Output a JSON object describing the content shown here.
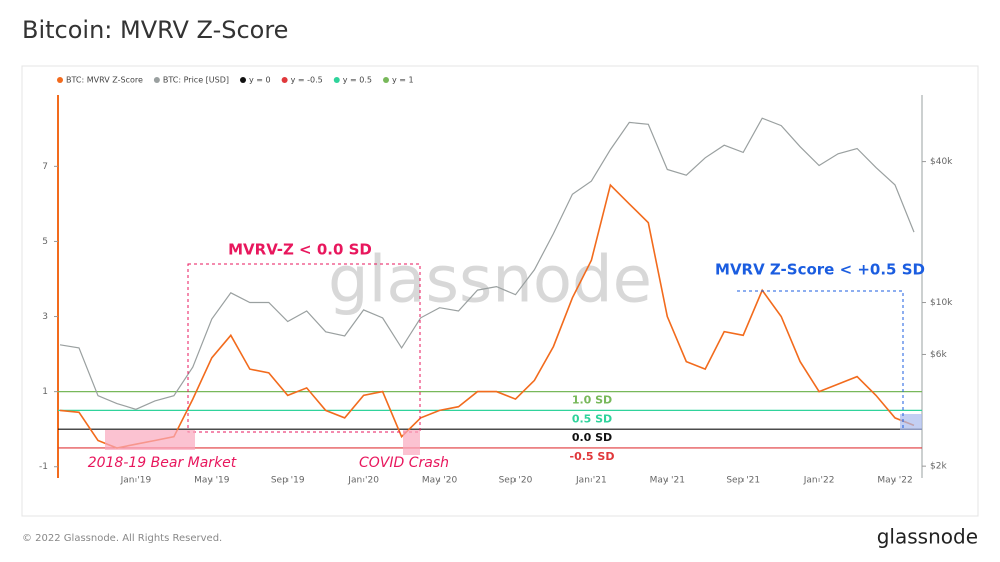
{
  "chart_data": {
    "type": "line",
    "title": "Bitcoin: MVRV Z-Score",
    "watermark": "glassnode",
    "x": [
      "2018-09",
      "2018-10",
      "2018-11",
      "2018-12",
      "2019-01",
      "2019-02",
      "2019-03",
      "2019-04",
      "2019-05",
      "2019-06",
      "2019-07",
      "2019-08",
      "2019-09",
      "2019-10",
      "2019-11",
      "2019-12",
      "2020-01",
      "2020-02",
      "2020-03",
      "2020-04",
      "2020-05",
      "2020-06",
      "2020-07",
      "2020-08",
      "2020-09",
      "2020-10",
      "2020-11",
      "2020-12",
      "2021-01",
      "2021-02",
      "2021-03",
      "2021-04",
      "2021-05",
      "2021-06",
      "2021-07",
      "2021-08",
      "2021-09",
      "2021-10",
      "2021-11",
      "2021-12",
      "2022-01",
      "2022-02",
      "2022-03",
      "2022-04",
      "2022-05",
      "2022-06"
    ],
    "xlim": [
      "2018-09",
      "2022-06"
    ],
    "xticks": [
      {
        "value": "2019-01",
        "label": "Jan '19"
      },
      {
        "value": "2019-05",
        "label": "May '19"
      },
      {
        "value": "2019-09",
        "label": "Sep '19"
      },
      {
        "value": "2020-01",
        "label": "Jan '20"
      },
      {
        "value": "2020-05",
        "label": "May '20"
      },
      {
        "value": "2020-09",
        "label": "Sep '20"
      },
      {
        "value": "2021-01",
        "label": "Jan '21"
      },
      {
        "value": "2021-05",
        "label": "May '21"
      },
      {
        "value": "2021-09",
        "label": "Sep '21"
      },
      {
        "value": "2022-01",
        "label": "Jan '22"
      },
      {
        "value": "2022-05",
        "label": "May '22"
      }
    ],
    "ylim": [
      -1.3,
      8.9
    ],
    "yticks": [
      -1,
      1,
      3,
      5,
      7
    ],
    "y2lim": [
      1780,
      77000
    ],
    "y2scale": "log",
    "y2ticks": [
      {
        "value": 2000,
        "label": "$2k"
      },
      {
        "value": 6000,
        "label": "$6k"
      },
      {
        "value": 10000,
        "label": "$10k"
      },
      {
        "value": 40000,
        "label": "$40k"
      }
    ],
    "series": [
      {
        "name": "BTC: MVRV Z-Score",
        "color": "#f26b1d",
        "axis": "y",
        "values": [
          0.5,
          0.45,
          -0.3,
          -0.5,
          -0.4,
          -0.3,
          -0.2,
          0.8,
          1.9,
          2.5,
          1.6,
          1.5,
          0.9,
          1.1,
          0.5,
          0.3,
          0.9,
          1.0,
          -0.2,
          0.3,
          0.5,
          0.6,
          1.0,
          1.0,
          0.8,
          1.3,
          2.2,
          3.5,
          4.5,
          6.5,
          6.0,
          5.5,
          3.0,
          1.8,
          1.6,
          2.6,
          2.5,
          3.7,
          3.0,
          1.8,
          1.0,
          1.2,
          1.4,
          0.9,
          0.3,
          0.1
        ]
      },
      {
        "name": "BTC: Price [USD]",
        "color": "#9aa0a0",
        "axis": "y2",
        "values": [
          6600,
          6400,
          4000,
          3700,
          3500,
          3800,
          4000,
          5300,
          8500,
          11000,
          10000,
          10000,
          8300,
          9200,
          7500,
          7200,
          9300,
          8600,
          6400,
          8600,
          9500,
          9200,
          11300,
          11700,
          10800,
          13800,
          19700,
          29000,
          33000,
          45000,
          58800,
          57700,
          37000,
          35000,
          41500,
          47000,
          43800,
          61300,
          57000,
          46300,
          38500,
          43200,
          45500,
          37700,
          31800,
          20000
        ]
      }
    ],
    "reference_lines": [
      {
        "name": "y = 0",
        "value": 0,
        "color": "#111111",
        "label": "0.0 SD"
      },
      {
        "name": "y = -0.5",
        "value": -0.5,
        "color": "#e0383b",
        "label": "-0.5 SD"
      },
      {
        "name": "y = 0.5",
        "value": 0.5,
        "color": "#2fd39b",
        "label": "0.5 SD"
      },
      {
        "name": "y = 1",
        "value": 1,
        "color": "#78b85a",
        "label": "1.0 SD"
      }
    ],
    "annotations": [
      "MVRV-Z < 0.0 SD",
      "MVRV Z-Score < +0.5 SD",
      "2018-19 Bear Market",
      "COVID Crash"
    ]
  },
  "footer": {
    "copyright": "© 2022 Glassnode. All Rights Reserved.",
    "logo": "glassnode"
  }
}
